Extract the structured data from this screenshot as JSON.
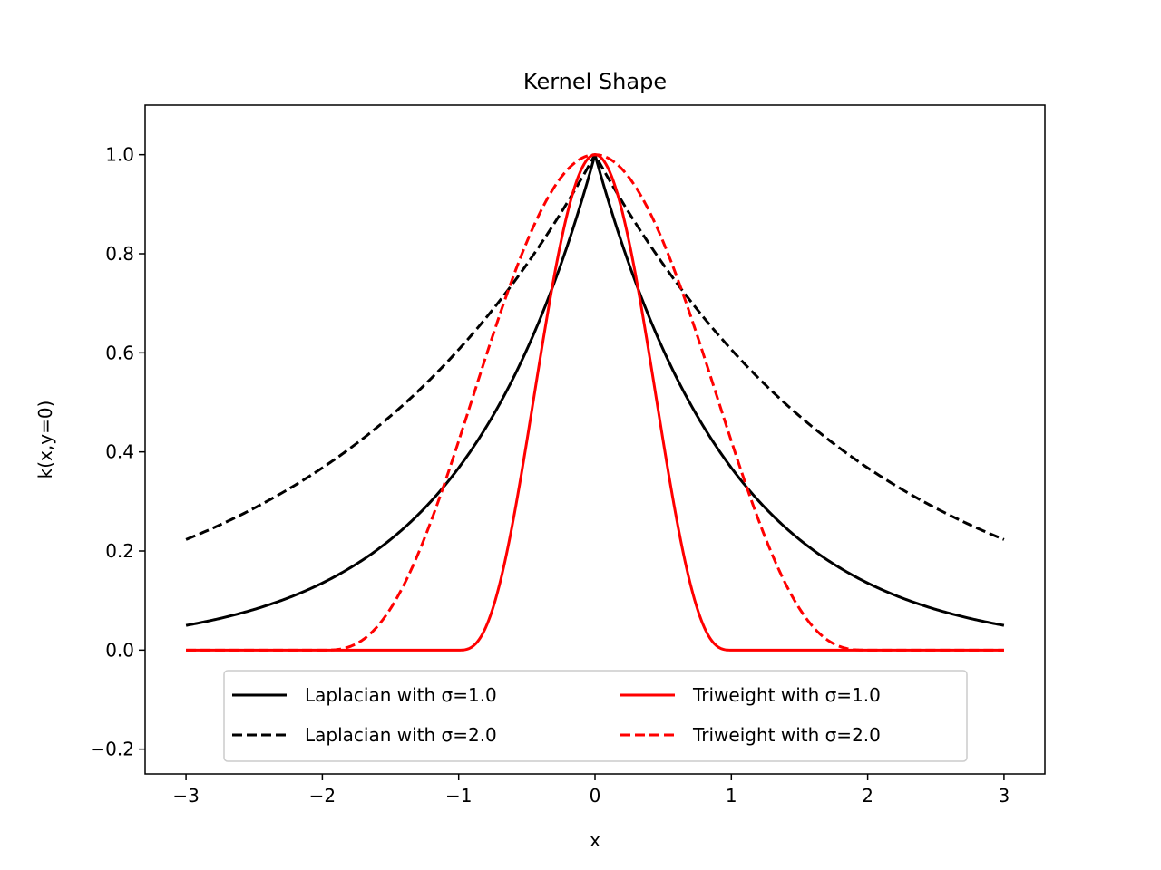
{
  "chart_data": {
    "type": "line",
    "title": "Kernel Shape",
    "xlabel": "x",
    "ylabel": "k(x,y=0)",
    "xlim": [
      -3.3,
      3.3
    ],
    "ylim": [
      -0.25,
      1.1
    ],
    "xticks": [
      -3,
      -2,
      -1,
      0,
      1,
      2,
      3
    ],
    "xtick_labels": [
      "−3",
      "−2",
      "−1",
      "0",
      "1",
      "2",
      "3"
    ],
    "yticks": [
      -0.2,
      0.0,
      0.2,
      0.4,
      0.6,
      0.8,
      1.0
    ],
    "ytick_labels": [
      "−0.2",
      "0.0",
      "0.2",
      "0.4",
      "0.6",
      "0.8",
      "1.0"
    ],
    "grid": false,
    "legend": {
      "placement": "lower-center",
      "columns": 2
    },
    "series": [
      {
        "name": "Laplacian with σ=1.0",
        "kernel": "laplacian",
        "sigma": 1.0,
        "color": "#000000",
        "dash": "solid"
      },
      {
        "name": "Laplacian with σ=2.0",
        "kernel": "laplacian",
        "sigma": 2.0,
        "color": "#000000",
        "dash": "dashed"
      },
      {
        "name": "Triweight with σ=1.0",
        "kernel": "triweight",
        "sigma": 1.0,
        "color": "#ff0000",
        "dash": "solid"
      },
      {
        "name": "Triweight with σ=2.0",
        "kernel": "triweight",
        "sigma": 2.0,
        "color": "#ff0000",
        "dash": "dashed"
      }
    ],
    "x_range": [
      -3,
      3
    ]
  }
}
